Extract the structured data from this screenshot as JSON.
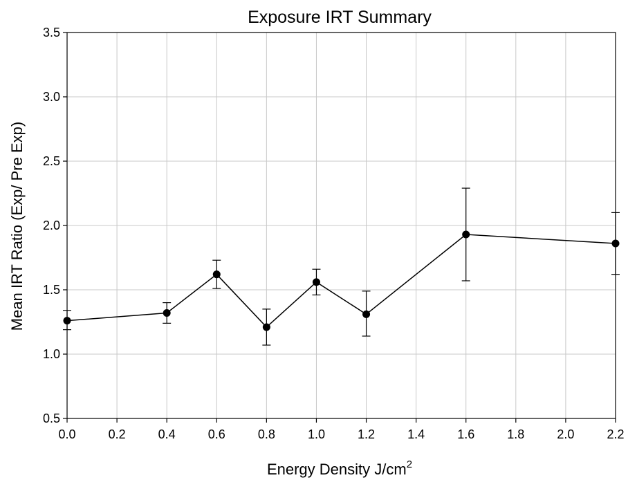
{
  "chart_data": {
    "type": "line",
    "title": "Exposure IRT Summary",
    "xlabel": "Energy Density J/cm",
    "xlabel_superscript": "2",
    "ylabel": "Mean IRT Ratio (Exp/ Pre Exp)",
    "xlim": [
      0.0,
      2.2
    ],
    "ylim": [
      0.5,
      3.5
    ],
    "x_ticks": [
      "0.0",
      "0.2",
      "0.4",
      "0.6",
      "0.8",
      "1.0",
      "1.2",
      "1.4",
      "1.6",
      "1.8",
      "2.0",
      "2.2"
    ],
    "y_ticks": [
      "0.5",
      "1.0",
      "1.5",
      "2.0",
      "2.5",
      "3.0",
      "3.5"
    ],
    "grid": true,
    "series": [
      {
        "x": [
          0.0,
          0.4,
          0.6,
          0.8,
          1.0,
          1.2,
          1.6,
          2.2
        ],
        "y": [
          1.26,
          1.32,
          1.62,
          1.21,
          1.56,
          1.31,
          1.93,
          1.86
        ],
        "error_low": [
          1.19,
          1.24,
          1.51,
          1.07,
          1.46,
          1.14,
          1.57,
          1.62
        ],
        "error_high": [
          1.34,
          1.4,
          1.73,
          1.35,
          1.66,
          1.49,
          2.29,
          2.1
        ]
      }
    ],
    "colors": {
      "line": "#000000",
      "marker": "#000000",
      "grid": "#c8c8c8"
    }
  }
}
